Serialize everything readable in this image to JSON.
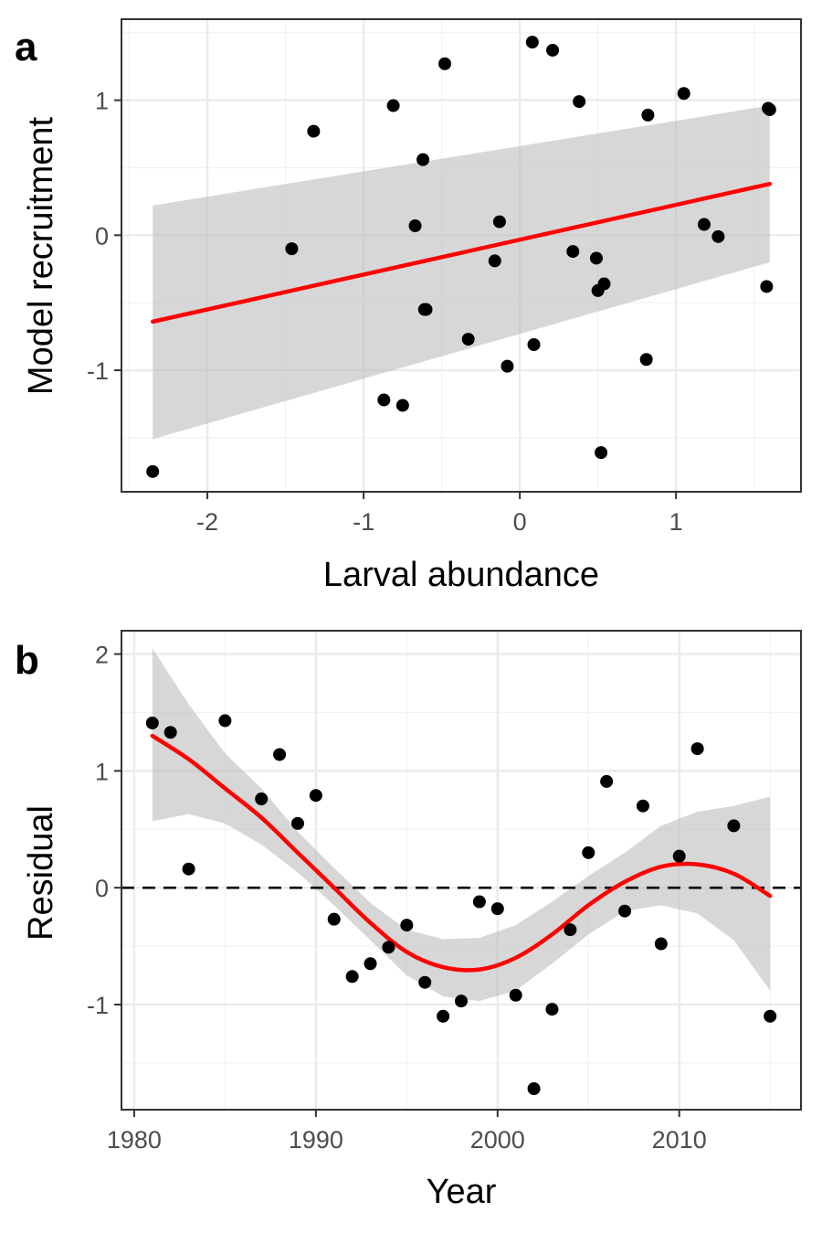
{
  "chart_data": [
    {
      "type": "scatter",
      "panel_label": "a",
      "xlabel": "Larval abundance",
      "ylabel": "Model recruitment",
      "xlim": [
        -2.55,
        1.8
      ],
      "ylim": [
        -1.9,
        1.6
      ],
      "x_ticks": [
        -2,
        -1,
        0,
        1
      ],
      "x_tick_labels": [
        "-2",
        "-1",
        "0",
        "1"
      ],
      "y_ticks": [
        -1,
        0,
        1
      ],
      "y_tick_labels": [
        "-1",
        "0",
        "1"
      ],
      "grid": true,
      "colors": {
        "points": "#000000",
        "fit_line": "#ff0000",
        "ci_band": "#bfbfbf"
      },
      "points": {
        "x": [
          -2.35,
          -1.46,
          -1.32,
          -0.87,
          -0.81,
          -0.75,
          -0.67,
          -0.62,
          -0.61,
          -0.6,
          -0.48,
          -0.33,
          -0.16,
          -0.13,
          -0.08,
          0.08,
          0.09,
          0.21,
          0.34,
          0.38,
          0.49,
          0.5,
          0.52,
          0.54,
          0.81,
          0.82,
          1.05,
          1.18,
          1.27,
          1.58,
          1.59,
          1.6
        ],
        "y": [
          -1.75,
          -0.1,
          0.77,
          -1.22,
          0.96,
          -1.26,
          0.07,
          0.56,
          -0.55,
          -0.55,
          1.27,
          -0.77,
          -0.19,
          0.1,
          -0.97,
          1.43,
          -0.81,
          1.37,
          -0.12,
          0.99,
          -0.17,
          -0.41,
          -1.61,
          -0.36,
          -0.92,
          0.89,
          1.05,
          0.08,
          -0.01,
          -0.38,
          0.94,
          0.93
        ]
      },
      "fit": {
        "x": [
          -2.35,
          1.6
        ],
        "y": [
          -0.64,
          0.38
        ],
        "ci_lower": [
          -1.51,
          -0.2
        ],
        "ci_upper": [
          0.22,
          0.96
        ]
      }
    },
    {
      "type": "scatter",
      "panel_label": "b",
      "xlabel": "Year",
      "ylabel": "Residual",
      "xlim": [
        1979.3,
        2016.7
      ],
      "ylim": [
        -1.9,
        2.2
      ],
      "x_ticks": [
        1980,
        1990,
        2000,
        2010
      ],
      "x_tick_labels": [
        "1980",
        "1990",
        "2000",
        "2010"
      ],
      "y_ticks": [
        -1,
        0,
        1,
        2
      ],
      "y_tick_labels": [
        "-1",
        "0",
        "1",
        "2"
      ],
      "grid": true,
      "reference_line_y": 0,
      "colors": {
        "points": "#000000",
        "fit_line": "#ff0000",
        "ci_band": "#bfbfbf",
        "reference_line": "#000000"
      },
      "points": {
        "x": [
          1981,
          1982,
          1983,
          1985,
          1987,
          1988,
          1989,
          1990,
          1991,
          1992,
          1993,
          1994,
          1995,
          1996,
          1997,
          1998,
          1999,
          2000,
          2001,
          2002,
          2003,
          2004,
          2005,
          2006,
          2007,
          2008,
          2009,
          2010,
          2011,
          2013,
          2015
        ],
        "y": [
          1.41,
          1.33,
          0.16,
          1.43,
          0.76,
          1.14,
          0.55,
          0.79,
          -0.27,
          -0.76,
          -0.65,
          -0.51,
          -0.32,
          -0.81,
          -1.1,
          -0.97,
          -0.12,
          -0.18,
          -0.92,
          -1.72,
          -1.04,
          -0.36,
          0.3,
          0.91,
          -0.2,
          0.7,
          -0.48,
          0.27,
          1.19,
          0.53,
          -1.1
        ]
      },
      "fit": {
        "x": [
          1981,
          1983,
          1985,
          1987,
          1989,
          1991,
          1993,
          1995,
          1997,
          1999,
          2001,
          2003,
          2005,
          2007,
          2009,
          2011,
          2013,
          2015
        ],
        "y": [
          1.3,
          1.1,
          0.85,
          0.6,
          0.3,
          0.0,
          -0.3,
          -0.55,
          -0.68,
          -0.7,
          -0.6,
          -0.4,
          -0.15,
          0.05,
          0.18,
          0.2,
          0.12,
          -0.07
        ],
        "ci_lower": [
          0.57,
          0.63,
          0.55,
          0.37,
          0.13,
          -0.15,
          -0.45,
          -0.75,
          -0.93,
          -0.97,
          -0.88,
          -0.65,
          -0.4,
          -0.2,
          -0.15,
          -0.22,
          -0.45,
          -0.88
        ],
        "ci_upper": [
          2.05,
          1.57,
          1.15,
          0.85,
          0.48,
          0.17,
          -0.13,
          -0.36,
          -0.44,
          -0.43,
          -0.32,
          -0.12,
          0.1,
          0.3,
          0.53,
          0.65,
          0.7,
          0.78
        ]
      }
    }
  ]
}
